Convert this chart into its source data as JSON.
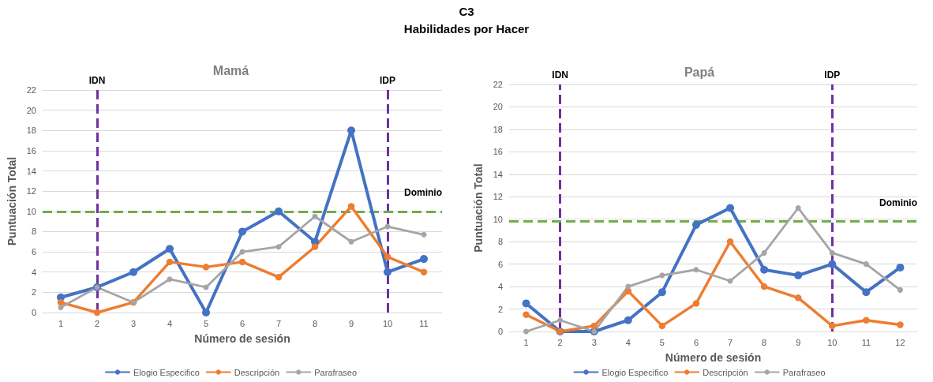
{
  "chart_data": [
    {
      "type": "other",
      "title": "C3",
      "subtitle": "Habilidades por Hacer"
    },
    {
      "type": "line",
      "title": "Mamá",
      "xlabel": "Número de sesión",
      "ylabel": "Puntuación Total",
      "categories": [
        "1",
        "2",
        "3",
        "4",
        "5",
        "6",
        "7",
        "8",
        "9",
        "10",
        "11"
      ],
      "series": [
        {
          "name": "Elogio Especifico",
          "color": "#4472c4",
          "values": [
            1.5,
            2.5,
            4,
            6.3,
            0,
            8,
            10,
            7,
            18,
            4,
            5.3
          ]
        },
        {
          "name": "Descripción",
          "color": "#ed7d31",
          "values": [
            1,
            0,
            1,
            5,
            4.5,
            5,
            3.5,
            6.5,
            10.5,
            5.5,
            4
          ]
        },
        {
          "name": "Parafraseo",
          "color": "#a5a5a5",
          "values": [
            0.5,
            2.5,
            1,
            3.3,
            2.5,
            6,
            6.5,
            9.5,
            7,
            8.5,
            7.7
          ]
        }
      ],
      "ylim": [
        0,
        22
      ],
      "yticks": [
        0,
        2,
        4,
        6,
        8,
        10,
        12,
        14,
        16,
        18,
        20,
        22
      ],
      "grid": "y",
      "legend": "bottom",
      "marker": "circle",
      "line_style": "solid",
      "ref_lines": [
        {
          "axis": "x",
          "value": "2",
          "label": "IDN",
          "color": "#7030a0",
          "line_style": "dashed"
        },
        {
          "axis": "x",
          "value": "10",
          "label": "IDP",
          "color": "#7030a0",
          "line_style": "dashed"
        },
        {
          "axis": "y",
          "value": 10,
          "label": "Dominio",
          "color": "#70ad47",
          "line_style": "dashed"
        }
      ]
    },
    {
      "type": "line",
      "title": "Papá",
      "xlabel": "Número de sesión",
      "ylabel": "Puntuación Total",
      "categories": [
        "1",
        "2",
        "3",
        "4",
        "5",
        "6",
        "7",
        "8",
        "9",
        "10",
        "11",
        "12"
      ],
      "series": [
        {
          "name": "Elogio Especifico",
          "color": "#4472c4",
          "values": [
            2.5,
            0,
            0,
            1,
            3.5,
            9.5,
            11,
            5.5,
            5,
            6,
            3.5,
            5.7
          ]
        },
        {
          "name": "Descripción",
          "color": "#ed7d31",
          "values": [
            1.5,
            0,
            0.5,
            3.6,
            0.5,
            2.5,
            8,
            4,
            3,
            0.5,
            1,
            0.6
          ]
        },
        {
          "name": "Parafraseo",
          "color": "#a5a5a5",
          "values": [
            0,
            1,
            0,
            4,
            5,
            5.5,
            4.5,
            7,
            11,
            7,
            6,
            3.7
          ]
        }
      ],
      "ylim": [
        0,
        22
      ],
      "yticks": [
        0,
        2,
        4,
        6,
        8,
        10,
        12,
        14,
        16,
        18,
        20,
        22
      ],
      "grid": "y",
      "legend": "bottom",
      "marker": "circle",
      "line_style": "solid",
      "ref_lines": [
        {
          "axis": "x",
          "value": "2",
          "label": "IDN",
          "color": "#7030a0",
          "line_style": "dashed"
        },
        {
          "axis": "x",
          "value": "10",
          "label": "IDP",
          "color": "#7030a0",
          "line_style": "dashed"
        },
        {
          "axis": "y",
          "value": 9.8,
          "label": "Dominio",
          "color": "#70ad47",
          "line_style": "dashed"
        }
      ]
    }
  ]
}
